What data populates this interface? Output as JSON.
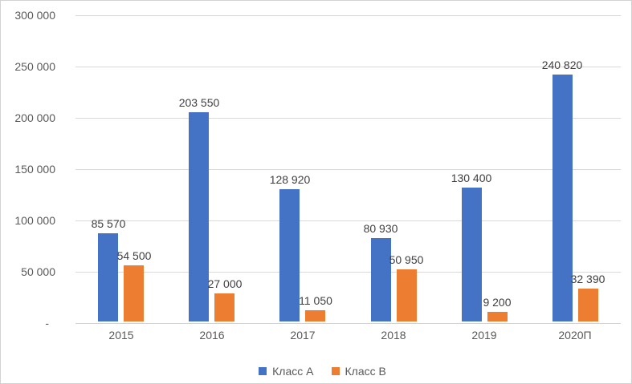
{
  "chart_data": {
    "type": "bar",
    "title": "",
    "categories": [
      "2015",
      "2016",
      "2017",
      "2018",
      "2019",
      "2020П"
    ],
    "series": [
      {
        "name": "Класс А",
        "color": "#4472C4",
        "values": [
          85570,
          203550,
          128920,
          80930,
          130400,
          240820
        ],
        "labels": [
          "85 570",
          "203 550",
          "128 920",
          "80 930",
          "130 400",
          "240 820"
        ]
      },
      {
        "name": "Класс В",
        "color": "#ED7D31",
        "values": [
          54500,
          27000,
          11050,
          50950,
          9200,
          32390
        ],
        "labels": [
          "54 500",
          "27 000",
          "11 050",
          "50 950",
          "9 200",
          "32 390"
        ]
      }
    ],
    "y_axis": {
      "min": 0,
      "max": 300000,
      "ticks": [
        {
          "value": 300000,
          "label": "300 000"
        },
        {
          "value": 250000,
          "label": "250 000"
        },
        {
          "value": 200000,
          "label": "200 000"
        },
        {
          "value": 150000,
          "label": "150 000"
        },
        {
          "value": 100000,
          "label": "100 000"
        },
        {
          "value": 50000,
          "label": "50 000"
        },
        {
          "value": 0,
          "label": "-"
        }
      ]
    },
    "grid": true,
    "legend_position": "bottom"
  },
  "colors": {
    "series_a": "#4472C4",
    "series_b": "#ED7D31",
    "gridline": "#D9D9D9",
    "axis_line": "#D2D2D2",
    "axis_text": "#595959",
    "data_label_text": "#3F3F3F",
    "chart_border": "#D2D2D2",
    "background": "#FFFFFF"
  }
}
